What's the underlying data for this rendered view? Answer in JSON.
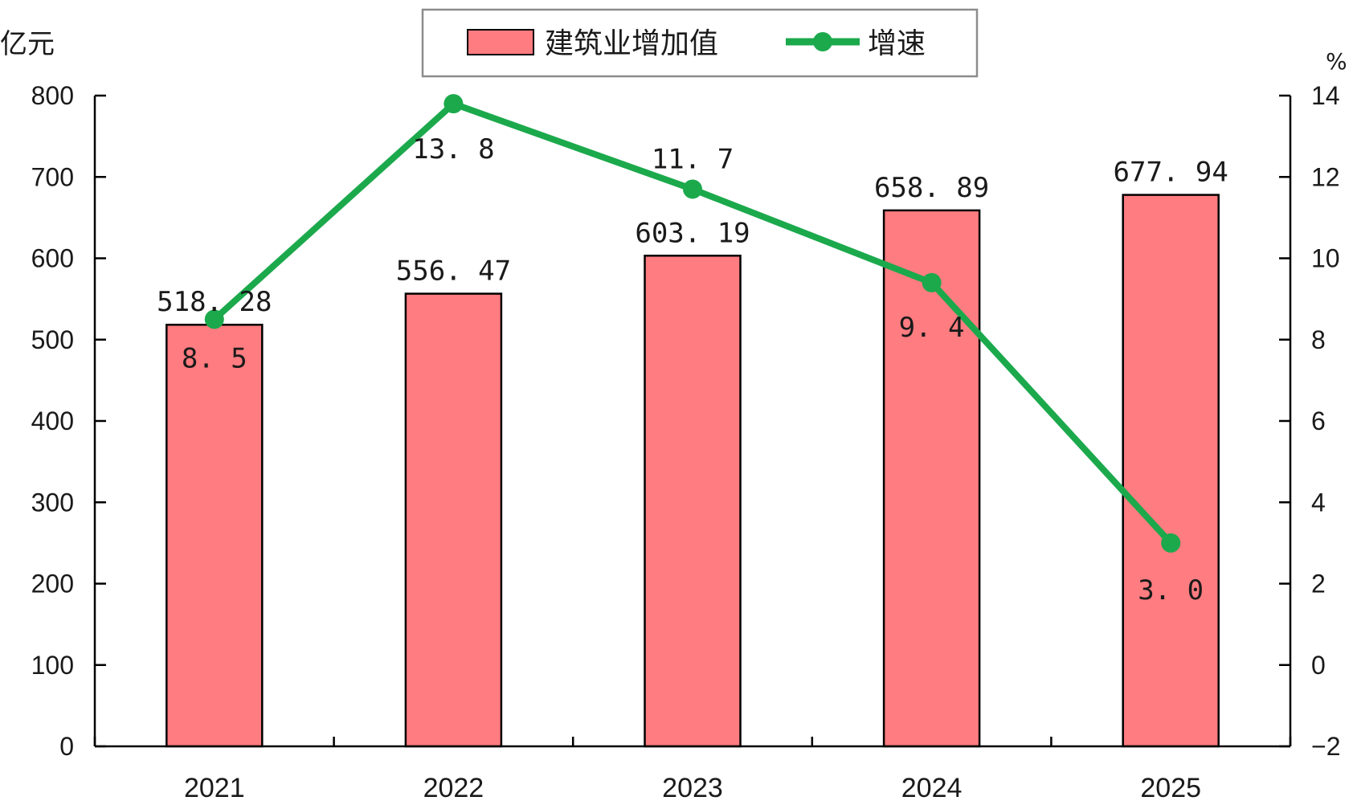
{
  "chart_data": {
    "type": "bar",
    "categories": [
      "2021",
      "2022",
      "2023",
      "2024",
      "2025"
    ],
    "series": [
      {
        "name": "建筑业增加值",
        "type": "bar",
        "axis": "left",
        "values": [
          518.28,
          556.47,
          603.19,
          658.89,
          677.94
        ],
        "labels": [
          "518. 28",
          "556. 47",
          "603. 19",
          "658. 89",
          "677. 94"
        ],
        "color": "#ff7c80"
      },
      {
        "name": "增速",
        "type": "line",
        "axis": "right",
        "values": [
          8.5,
          13.8,
          11.7,
          9.4,
          3.0
        ],
        "labels": [
          "8. 5",
          "13. 8",
          "11. 7",
          "9. 4",
          "3. 0"
        ],
        "color": "#1ba94c"
      }
    ],
    "y_left": {
      "unit": "亿元",
      "range": [
        0,
        800
      ],
      "ticks": [
        "0",
        "100",
        "200",
        "300",
        "400",
        "500",
        "600",
        "700",
        "800"
      ]
    },
    "y_right": {
      "unit": "%",
      "range": [
        -2,
        14
      ],
      "ticks": [
        "−2",
        "0",
        "2",
        "4",
        "6",
        "8",
        "10",
        "12",
        "14"
      ]
    },
    "grid": false,
    "legend_position": "top-center"
  }
}
